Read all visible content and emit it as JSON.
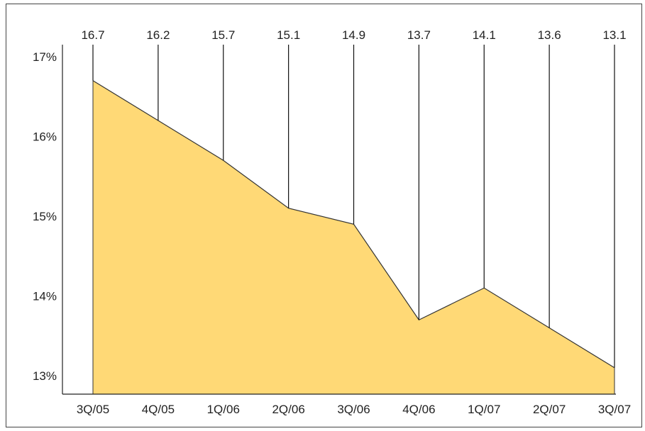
{
  "chart_data": {
    "type": "area",
    "title": "",
    "xlabel": "",
    "ylabel": "",
    "categories": [
      "3Q/05",
      "4Q/05",
      "1Q/06",
      "2Q/06",
      "3Q/06",
      "4Q/06",
      "1Q/07",
      "2Q/07",
      "3Q/07"
    ],
    "series": [
      {
        "values": [
          16.7,
          16.2,
          15.7,
          15.1,
          14.9,
          13.7,
          14.1,
          13.6,
          13.1
        ],
        "data_labels": [
          "16.7",
          "16.2",
          "15.7",
          "15.1",
          "14.9",
          "13.7",
          "14.1",
          "13.6",
          "13.1"
        ]
      }
    ],
    "ylim": [
      12.9,
      17.3
    ],
    "yticks": [
      13,
      14,
      15,
      16,
      17
    ],
    "ytick_labels": [
      "13%",
      "14%",
      "15%",
      "16%",
      "17%"
    ],
    "grid": false,
    "legend": "none",
    "data_label_position": "top, with leader lines",
    "colors": {
      "area_fill": "#FFD976",
      "line": "#333333",
      "axis": "#222222",
      "leader_lines": "#111111"
    }
  }
}
